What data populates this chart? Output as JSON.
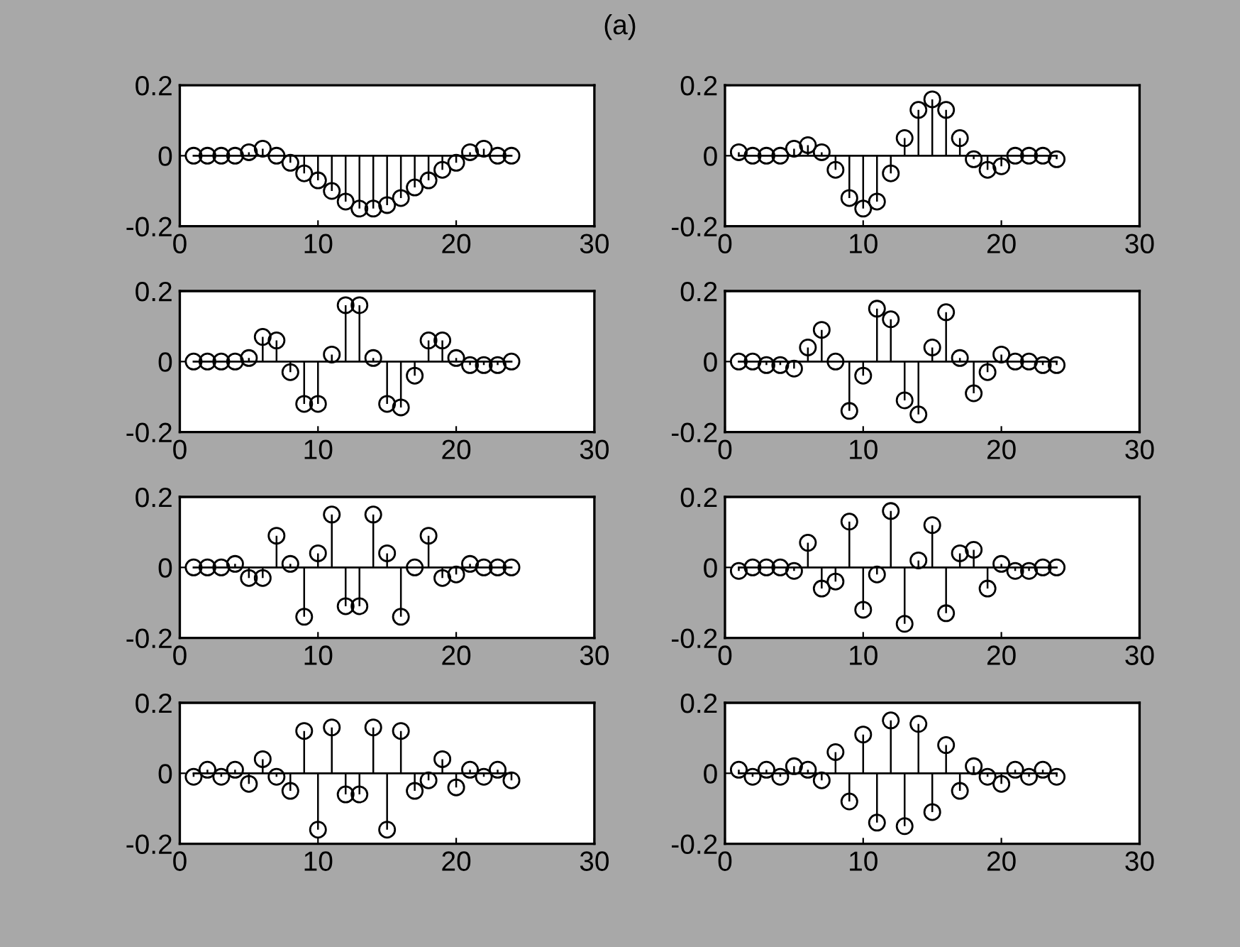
{
  "chart_data": [
    {
      "type": "lollipop",
      "annotations": [
        "(a)"
      ],
      "x": [
        1,
        2,
        3,
        4,
        5,
        6,
        7,
        8,
        9,
        10,
        11,
        12,
        13,
        14,
        15,
        16,
        17,
        18,
        19,
        20,
        21,
        22,
        23,
        24
      ],
      "values": [
        0,
        0,
        0,
        0,
        0.01,
        0.02,
        0,
        -0.02,
        -0.05,
        -0.07,
        -0.1,
        -0.13,
        -0.15,
        -0.15,
        -0.14,
        -0.12,
        -0.09,
        -0.07,
        -0.04,
        -0.02,
        0.01,
        0.02,
        0,
        0
      ],
      "color": "#000000",
      "marker": "circle",
      "xlim": [
        0,
        30
      ],
      "ylim": [
        -0.2,
        0.2
      ],
      "xticks": [
        0,
        10,
        20,
        30
      ],
      "yticks": [
        -0.2,
        0,
        0.2
      ]
    },
    {
      "type": "lollipop",
      "x": [
        1,
        2,
        3,
        4,
        5,
        6,
        7,
        8,
        9,
        10,
        11,
        12,
        13,
        14,
        15,
        16,
        17,
        18,
        19,
        20,
        21,
        22,
        23,
        24
      ],
      "values": [
        0.01,
        0,
        0,
        0,
        0.02,
        0.03,
        0.01,
        -0.04,
        -0.12,
        -0.15,
        -0.13,
        -0.05,
        0.05,
        0.13,
        0.16,
        0.13,
        0.05,
        -0.01,
        -0.04,
        -0.03,
        0,
        0,
        0,
        -0.01
      ],
      "color": "#000000",
      "marker": "circle",
      "xlim": [
        0,
        30
      ],
      "ylim": [
        -0.2,
        0.2
      ],
      "xticks": [
        0,
        10,
        20,
        30
      ],
      "yticks": [
        -0.2,
        0,
        0.2
      ]
    },
    {
      "type": "lollipop",
      "x": [
        1,
        2,
        3,
        4,
        5,
        6,
        7,
        8,
        9,
        10,
        11,
        12,
        13,
        14,
        15,
        16,
        17,
        18,
        19,
        20,
        21,
        22,
        23,
        24
      ],
      "values": [
        0,
        0,
        0,
        0,
        0.01,
        0.07,
        0.06,
        -0.03,
        -0.12,
        -0.12,
        0.02,
        0.16,
        0.16,
        0.01,
        -0.12,
        -0.13,
        -0.04,
        0.06,
        0.06,
        0.01,
        -0.01,
        -0.01,
        -0.01,
        0
      ],
      "color": "#000000",
      "marker": "circle",
      "xlim": [
        0,
        30
      ],
      "ylim": [
        -0.2,
        0.2
      ],
      "xticks": [
        0,
        10,
        20,
        30
      ],
      "yticks": [
        -0.2,
        0,
        0.2
      ]
    },
    {
      "type": "lollipop",
      "x": [
        1,
        2,
        3,
        4,
        5,
        6,
        7,
        8,
        9,
        10,
        11,
        12,
        13,
        14,
        15,
        16,
        17,
        18,
        19,
        20,
        21,
        22,
        23,
        24
      ],
      "values": [
        0,
        0,
        -0.01,
        -0.01,
        -0.02,
        0.04,
        0.09,
        0,
        -0.14,
        -0.04,
        0.15,
        0.12,
        -0.11,
        -0.15,
        0.04,
        0.14,
        0.01,
        -0.09,
        -0.03,
        0.02,
        0,
        0,
        -0.01,
        -0.01
      ],
      "color": "#000000",
      "marker": "circle",
      "xlim": [
        0,
        30
      ],
      "ylim": [
        -0.2,
        0.2
      ],
      "xticks": [
        0,
        10,
        20,
        30
      ],
      "yticks": [
        -0.2,
        0,
        0.2
      ]
    },
    {
      "type": "lollipop",
      "x": [
        1,
        2,
        3,
        4,
        5,
        6,
        7,
        8,
        9,
        10,
        11,
        12,
        13,
        14,
        15,
        16,
        17,
        18,
        19,
        20,
        21,
        22,
        23,
        24
      ],
      "values": [
        0,
        0,
        0,
        0.01,
        -0.03,
        -0.03,
        0.09,
        0.01,
        -0.14,
        0.04,
        0.15,
        -0.11,
        -0.11,
        0.15,
        0.04,
        -0.14,
        0,
        0.09,
        -0.03,
        -0.02,
        0.01,
        0,
        0,
        0
      ],
      "color": "#000000",
      "marker": "circle",
      "xlim": [
        0,
        30
      ],
      "ylim": [
        -0.2,
        0.2
      ],
      "xticks": [
        0,
        10,
        20,
        30
      ],
      "yticks": [
        -0.2,
        0,
        0.2
      ]
    },
    {
      "type": "lollipop",
      "x": [
        1,
        2,
        3,
        4,
        5,
        6,
        7,
        8,
        9,
        10,
        11,
        12,
        13,
        14,
        15,
        16,
        17,
        18,
        19,
        20,
        21,
        22,
        23,
        24
      ],
      "values": [
        -0.01,
        0,
        0,
        0,
        -0.01,
        0.07,
        -0.06,
        -0.04,
        0.13,
        -0.12,
        -0.02,
        0.16,
        -0.16,
        0.02,
        0.12,
        -0.13,
        0.04,
        0.05,
        -0.06,
        0.01,
        -0.01,
        -0.01,
        0,
        0
      ],
      "color": "#000000",
      "marker": "circle",
      "xlim": [
        0,
        30
      ],
      "ylim": [
        -0.2,
        0.2
      ],
      "xticks": [
        0,
        10,
        20,
        30
      ],
      "yticks": [
        -0.2,
        0,
        0.2
      ]
    },
    {
      "type": "lollipop",
      "x": [
        1,
        2,
        3,
        4,
        5,
        6,
        7,
        8,
        9,
        10,
        11,
        12,
        13,
        14,
        15,
        16,
        17,
        18,
        19,
        20,
        21,
        22,
        23,
        24
      ],
      "values": [
        -0.01,
        0.01,
        -0.01,
        0.01,
        -0.03,
        0.04,
        -0.01,
        -0.05,
        0.12,
        -0.16,
        0.13,
        -0.06,
        -0.06,
        0.13,
        -0.16,
        0.12,
        -0.05,
        -0.02,
        0.04,
        -0.04,
        0.01,
        -0.01,
        0.01,
        -0.02
      ],
      "color": "#000000",
      "marker": "circle",
      "xlim": [
        0,
        30
      ],
      "ylim": [
        -0.2,
        0.2
      ],
      "xticks": [
        0,
        10,
        20,
        30
      ],
      "yticks": [
        -0.2,
        0,
        0.2
      ]
    },
    {
      "type": "lollipop",
      "x": [
        1,
        2,
        3,
        4,
        5,
        6,
        7,
        8,
        9,
        10,
        11,
        12,
        13,
        14,
        15,
        16,
        17,
        18,
        19,
        20,
        21,
        22,
        23,
        24
      ],
      "values": [
        0.01,
        -0.01,
        0.01,
        -0.01,
        0.02,
        0.01,
        -0.02,
        0.06,
        -0.08,
        0.11,
        -0.14,
        0.15,
        -0.15,
        0.14,
        -0.11,
        0.08,
        -0.05,
        0.02,
        -0.01,
        -0.03,
        0.01,
        -0.01,
        0.01,
        -0.01
      ],
      "color": "#000000",
      "marker": "circle",
      "xlim": [
        0,
        30
      ],
      "ylim": [
        -0.2,
        0.2
      ],
      "xticks": [
        0,
        10,
        20,
        30
      ],
      "yticks": [
        -0.2,
        0,
        0.2
      ]
    }
  ]
}
